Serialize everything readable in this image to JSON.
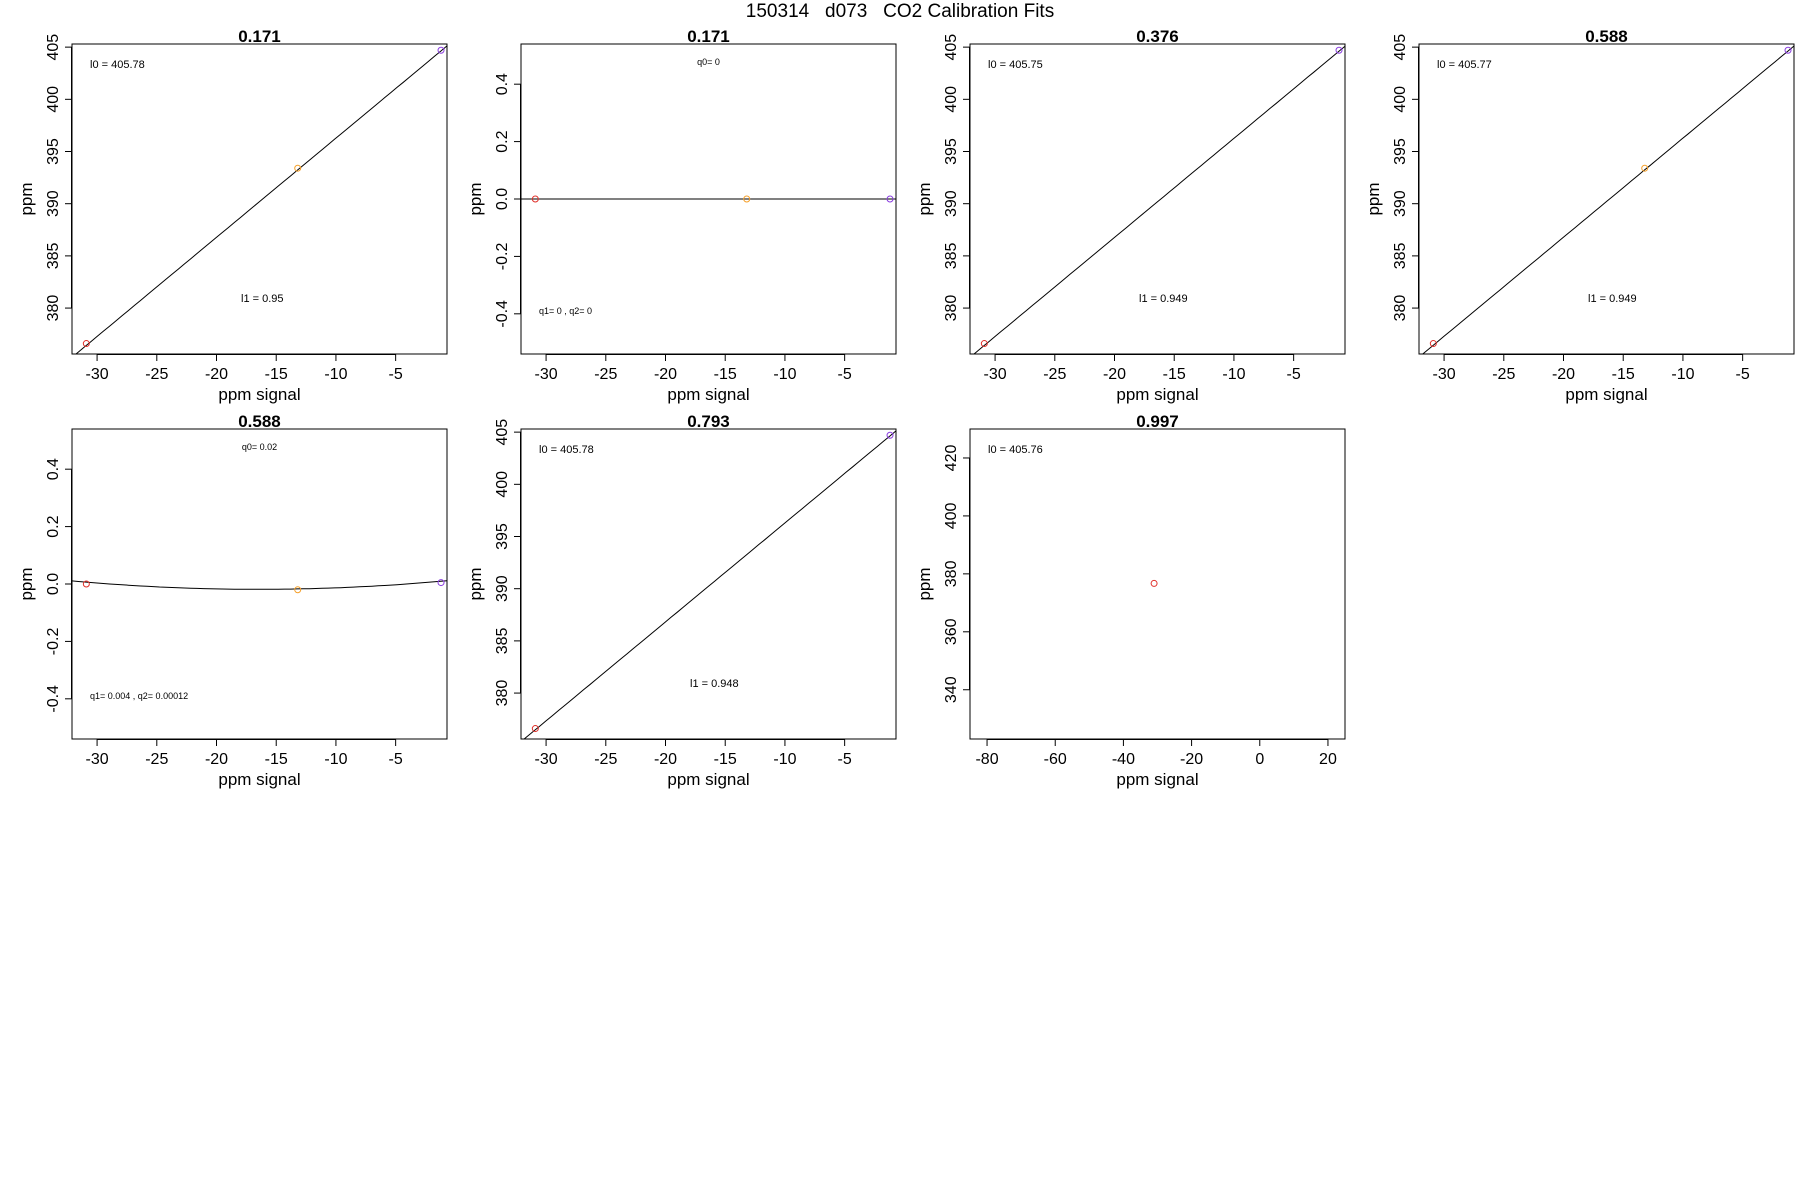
{
  "page": {
    "title": "150314   d073   CO2 Calibration Fits"
  },
  "colors": {
    "axis": "#000000",
    "fit_line": "#000000",
    "red": "#e0302a",
    "orange": "#f5a02a",
    "purple": "#8a3de0"
  },
  "chart_data": [
    {
      "type": "scatter",
      "title": "0.171",
      "xlabel": "ppm signal",
      "ylabel": "ppm",
      "xlim": [
        -32.1,
        -0.7
      ],
      "ylim": [
        375.6,
        405.3
      ],
      "x_ticks": [
        -30,
        -25,
        -20,
        -15,
        -10,
        -5
      ],
      "y_ticks": [
        380,
        385,
        390,
        395,
        400,
        405
      ],
      "points": [
        {
          "x": -30.9,
          "y": 376.6,
          "color": "red"
        },
        {
          "x": -13.2,
          "y": 393.4,
          "color": "orange"
        },
        {
          "x": -1.2,
          "y": 404.7,
          "color": "purple"
        }
      ],
      "fit": {
        "kind": "linear",
        "intercept": 405.78,
        "slope": 0.95
      },
      "annotations": [
        {
          "text": "l0 =  405.78",
          "pos": "top-left"
        },
        {
          "text": "l1 =  0.95",
          "pos": "bottom-middle"
        }
      ]
    },
    {
      "type": "scatter",
      "title": "0.171",
      "xlabel": "ppm signal",
      "ylabel": "ppm",
      "xlim": [
        -32.1,
        -0.7
      ],
      "ylim": [
        -0.54,
        0.54
      ],
      "x_ticks": [
        -30,
        -25,
        -20,
        -15,
        -10,
        -5
      ],
      "y_ticks": [
        -0.4,
        -0.2,
        0.0,
        0.2,
        0.4
      ],
      "points": [
        {
          "x": -30.9,
          "y": 0.0,
          "color": "red"
        },
        {
          "x": -13.2,
          "y": 0.0,
          "color": "orange"
        },
        {
          "x": -1.2,
          "y": 0.0,
          "color": "purple"
        }
      ],
      "fit": {
        "kind": "quadratic",
        "q0": 0,
        "q1": 0,
        "q2": 0
      },
      "annotations": [
        {
          "text": "q0= 0",
          "pos": "top-middle"
        },
        {
          "text": "q1= 0  ,  q2= 0",
          "pos": "bottom-left"
        }
      ]
    },
    {
      "type": "scatter",
      "title": "0.376",
      "xlabel": "ppm signal",
      "ylabel": "ppm",
      "xlim": [
        -32.1,
        -0.7
      ],
      "ylim": [
        375.6,
        405.3
      ],
      "x_ticks": [
        -30,
        -25,
        -20,
        -15,
        -10,
        -5
      ],
      "y_ticks": [
        380,
        385,
        390,
        395,
        400,
        405
      ],
      "points": [
        {
          "x": -30.9,
          "y": 376.6,
          "color": "red"
        },
        {
          "x": -1.2,
          "y": 404.7,
          "color": "purple"
        }
      ],
      "fit": {
        "kind": "linear",
        "intercept": 405.75,
        "slope": 0.949
      },
      "annotations": [
        {
          "text": "l0 =  405.75",
          "pos": "top-left"
        },
        {
          "text": "l1 =  0.949",
          "pos": "bottom-middle"
        }
      ]
    },
    {
      "type": "scatter",
      "title": "0.588",
      "xlabel": "ppm signal",
      "ylabel": "ppm",
      "xlim": [
        -32.1,
        -0.7
      ],
      "ylim": [
        375.6,
        405.3
      ],
      "x_ticks": [
        -30,
        -25,
        -20,
        -15,
        -10,
        -5
      ],
      "y_ticks": [
        380,
        385,
        390,
        395,
        400,
        405
      ],
      "points": [
        {
          "x": -30.9,
          "y": 376.6,
          "color": "red"
        },
        {
          "x": -13.2,
          "y": 393.4,
          "color": "orange"
        },
        {
          "x": -1.2,
          "y": 404.7,
          "color": "purple"
        }
      ],
      "fit": {
        "kind": "linear",
        "intercept": 405.77,
        "slope": 0.949
      },
      "annotations": [
        {
          "text": "l0 =  405.77",
          "pos": "top-left"
        },
        {
          "text": "l1 =  0.949",
          "pos": "bottom-middle"
        }
      ]
    },
    {
      "type": "scatter",
      "title": "0.588",
      "xlabel": "ppm signal",
      "ylabel": "ppm",
      "xlim": [
        -32.1,
        -0.7
      ],
      "ylim": [
        -0.54,
        0.54
      ],
      "x_ticks": [
        -30,
        -25,
        -20,
        -15,
        -10,
        -5
      ],
      "y_ticks": [
        -0.4,
        -0.2,
        0.0,
        0.2,
        0.4
      ],
      "points": [
        {
          "x": -30.9,
          "y": 0.0,
          "color": "red"
        },
        {
          "x": -13.2,
          "y": -0.02,
          "color": "orange"
        },
        {
          "x": -1.2,
          "y": 0.005,
          "color": "purple"
        }
      ],
      "fit": {
        "kind": "quadratic",
        "q0": 0.02,
        "q1": 0.004,
        "q2": 0.00012
      },
      "annotations": [
        {
          "text": "q0= 0.02",
          "pos": "top-middle"
        },
        {
          "text": "q1= 0.004  ,  q2= 0.00012",
          "pos": "bottom-left"
        }
      ]
    },
    {
      "type": "scatter",
      "title": "0.793",
      "xlabel": "ppm signal",
      "ylabel": "ppm",
      "xlim": [
        -32.1,
        -0.7
      ],
      "ylim": [
        375.6,
        405.3
      ],
      "x_ticks": [
        -30,
        -25,
        -20,
        -15,
        -10,
        -5
      ],
      "y_ticks": [
        380,
        385,
        390,
        395,
        400,
        405
      ],
      "points": [
        {
          "x": -30.9,
          "y": 376.6,
          "color": "red"
        },
        {
          "x": -1.2,
          "y": 404.7,
          "color": "purple"
        }
      ],
      "fit": {
        "kind": "linear",
        "intercept": 405.78,
        "slope": 0.948
      },
      "annotations": [
        {
          "text": "l0 =  405.78",
          "pos": "top-left"
        },
        {
          "text": "l1 =  0.948",
          "pos": "bottom-middle"
        }
      ]
    },
    {
      "type": "scatter",
      "title": "0.997",
      "xlabel": "ppm signal",
      "ylabel": "ppm",
      "xlim": [
        -85,
        25
      ],
      "ylim": [
        323,
        430
      ],
      "x_ticks": [
        -80,
        -60,
        -40,
        -20,
        0,
        20
      ],
      "y_ticks": [
        340,
        360,
        380,
        400,
        420
      ],
      "points": [
        {
          "x": -31,
          "y": 376.7,
          "color": "red"
        }
      ],
      "fit": null,
      "annotations": [
        {
          "text": "l0 =  405.76",
          "pos": "top-left"
        }
      ]
    }
  ]
}
